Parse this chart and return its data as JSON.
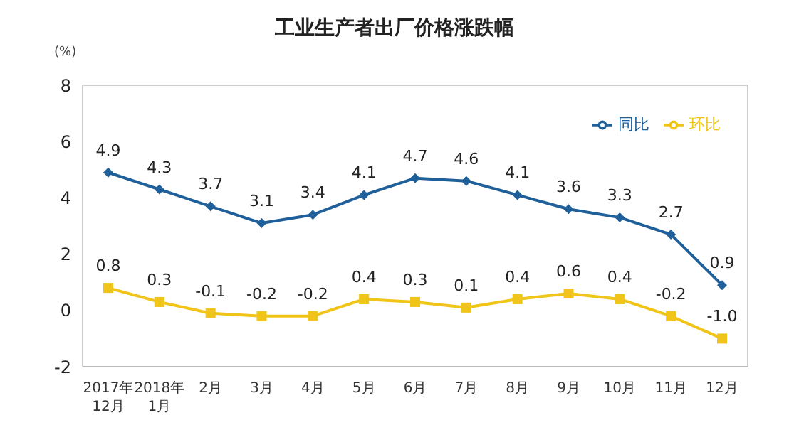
{
  "chart_data": {
    "type": "line",
    "title": "工业生产者出厂价格涨跌幅",
    "ylabel": "(%)",
    "categories": [
      "2017年\n12月",
      "2018年\n1月",
      "2月",
      "3月",
      "4月",
      "5月",
      "6月",
      "7月",
      "8月",
      "9月",
      "10月",
      "11月",
      "12月"
    ],
    "series": [
      {
        "name": "同比",
        "color": "#1f5f9a",
        "marker": "diamond",
        "values": [
          4.9,
          4.3,
          3.7,
          3.1,
          3.4,
          4.1,
          4.7,
          4.6,
          4.1,
          3.6,
          3.3,
          2.7,
          0.9
        ],
        "value_labels": [
          "4.9",
          "4.3",
          "3.7",
          "3.1",
          "3.4",
          "4.1",
          "4.7",
          "4.6",
          "4.1",
          "3.6",
          "3.3",
          "2.7",
          "0.9"
        ]
      },
      {
        "name": "环比",
        "color": "#f0c419",
        "marker": "square",
        "values": [
          0.8,
          0.3,
          -0.1,
          -0.2,
          -0.2,
          0.4,
          0.3,
          0.1,
          0.4,
          0.6,
          0.4,
          -0.2,
          -1.0
        ],
        "value_labels": [
          "0.8",
          "0.3",
          "-0.1",
          "-0.2",
          "-0.2",
          "0.4",
          "0.3",
          "0.1",
          "0.4",
          "0.6",
          "0.4",
          "-0.2",
          "-1.0"
        ]
      }
    ],
    "ylim": [
      -2,
      8
    ],
    "yticks": [
      -2,
      0,
      2,
      4,
      6,
      8
    ],
    "legend": "top right",
    "line_style": "solid"
  }
}
